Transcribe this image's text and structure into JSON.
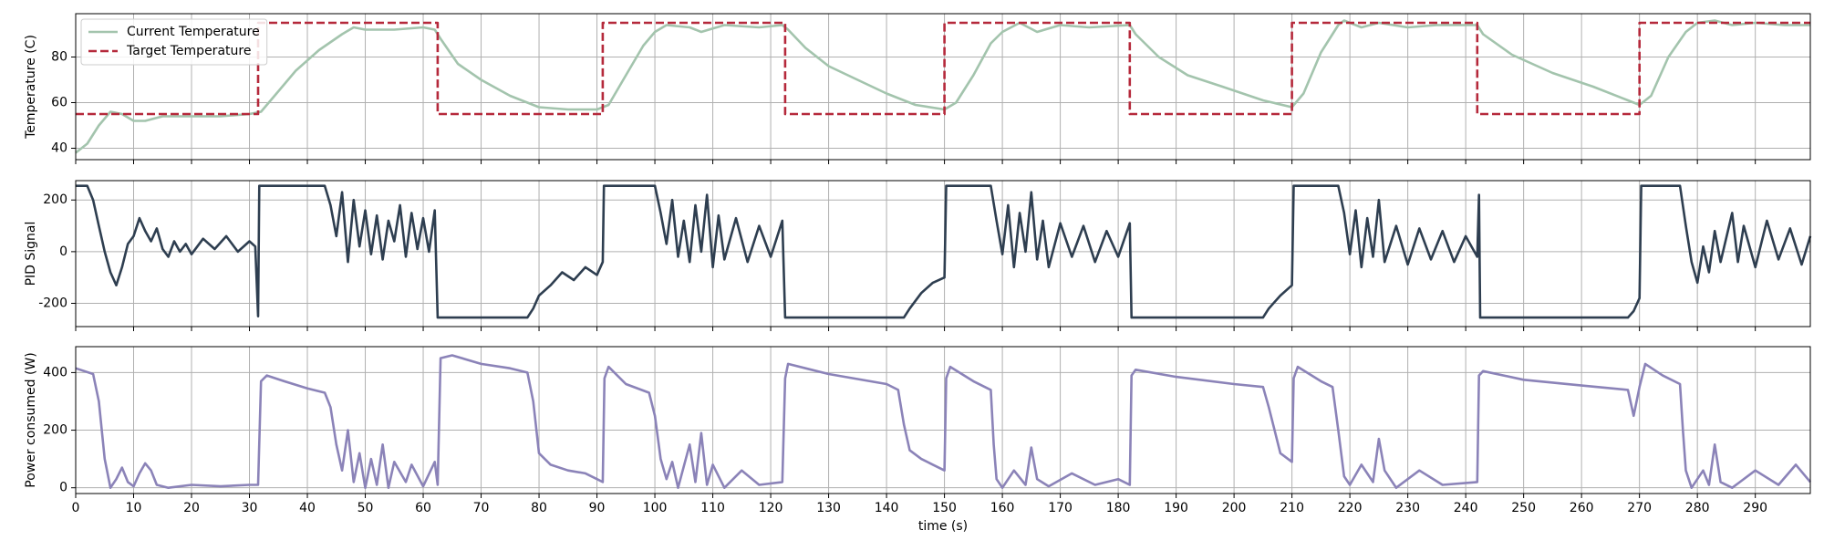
{
  "chart_data": [
    {
      "type": "line",
      "ylabel": "Temperature (C)",
      "xlim": [
        0,
        299.5
      ],
      "ylim": [
        35,
        99
      ],
      "yticks": [
        40,
        60,
        80
      ],
      "grid": true,
      "legend": "upper left",
      "series": [
        {
          "name": "Current Temperature",
          "color": "#a3c4ad",
          "linestyle": "solid",
          "x": [
            0,
            2,
            4,
            6,
            8,
            10,
            12,
            15,
            20,
            25,
            30,
            32,
            35,
            38,
            42,
            46,
            48,
            50,
            55,
            60,
            62,
            63,
            66,
            70,
            75,
            80,
            85,
            90,
            92,
            95,
            98,
            100,
            102,
            106,
            108,
            112,
            118,
            122,
            123,
            126,
            130,
            135,
            140,
            145,
            150,
            152,
            155,
            158,
            160,
            163,
            166,
            170,
            175,
            182,
            183,
            187,
            192,
            198,
            205,
            210,
            212,
            215,
            218,
            219,
            222,
            225,
            230,
            235,
            242,
            243,
            248,
            255,
            262,
            268,
            270,
            272,
            275,
            278,
            280,
            283,
            286,
            290,
            295,
            299.5
          ],
          "values": [
            38,
            42,
            50,
            56,
            55,
            52,
            52,
            54,
            54,
            54,
            55,
            56,
            65,
            74,
            83,
            90,
            93,
            92,
            92,
            93,
            92,
            88,
            77,
            70,
            63,
            58,
            57,
            57,
            59,
            72,
            85,
            91,
            94,
            93,
            91,
            94,
            93,
            94,
            92,
            84,
            76,
            70,
            64,
            59,
            57,
            60,
            72,
            86,
            91,
            95,
            91,
            94,
            93,
            94,
            90,
            80,
            72,
            67,
            61,
            58,
            64,
            82,
            94,
            96,
            93,
            95,
            93,
            94,
            94,
            90,
            81,
            73,
            67,
            61,
            59,
            63,
            80,
            91,
            95,
            96,
            94,
            95,
            94,
            94
          ]
        },
        {
          "name": "Target Temperature",
          "color": "#b5293b",
          "linestyle": "dashed",
          "x": [
            0,
            31.5,
            31.5,
            62.5,
            62.5,
            91,
            91,
            122.5,
            122.5,
            150,
            150,
            182,
            182,
            210,
            210,
            242,
            242,
            270,
            270,
            299.5
          ],
          "values": [
            55,
            55,
            95,
            95,
            55,
            55,
            95,
            95,
            55,
            55,
            95,
            95,
            55,
            55,
            95,
            95,
            55,
            55,
            95,
            95
          ]
        }
      ]
    },
    {
      "type": "line",
      "ylabel": "PID Signal",
      "xlim": [
        0,
        299.5
      ],
      "ylim": [
        -290,
        275
      ],
      "yticks": [
        -200,
        0,
        200
      ],
      "grid": true,
      "series": [
        {
          "color": "#2e3e50",
          "linestyle": "solid",
          "x": [
            0,
            2,
            3,
            4,
            5,
            6,
            7,
            8,
            9,
            10,
            11,
            12,
            13,
            14,
            15,
            16,
            17,
            18,
            19,
            20,
            22,
            24,
            26,
            28,
            30,
            31,
            31.5,
            31.7,
            43,
            44,
            45,
            46,
            47,
            48,
            49,
            50,
            51,
            52,
            53,
            54,
            55,
            56,
            57,
            58,
            59,
            60,
            61,
            62,
            62.5,
            78,
            79,
            80,
            82,
            84,
            86,
            88,
            90,
            91,
            91.2,
            100,
            101,
            102,
            103,
            104,
            105,
            106,
            107,
            108,
            109,
            110,
            111,
            112,
            114,
            116,
            118,
            120,
            122,
            122.5,
            143,
            144,
            146,
            148,
            150,
            150.3,
            158,
            159,
            160,
            161,
            162,
            163,
            164,
            165,
            166,
            167,
            168,
            170,
            172,
            174,
            176,
            178,
            180,
            182,
            182.3,
            205,
            206,
            208,
            210,
            210.3,
            218,
            219,
            220,
            221,
            222,
            223,
            224,
            225,
            226,
            228,
            230,
            232,
            234,
            236,
            238,
            240,
            242,
            242.3,
            242.5,
            268,
            269,
            270,
            270.3,
            277,
            278,
            279,
            280,
            281,
            282,
            283,
            284,
            286,
            287,
            288,
            290,
            292,
            294,
            296,
            298,
            299.5
          ],
          "values": [
            255,
            255,
            200,
            100,
            0,
            -80,
            -130,
            -60,
            30,
            60,
            130,
            80,
            40,
            90,
            10,
            -20,
            40,
            0,
            30,
            -10,
            50,
            10,
            60,
            0,
            40,
            20,
            -250,
            255,
            255,
            180,
            60,
            230,
            -40,
            200,
            20,
            160,
            -10,
            140,
            -30,
            120,
            40,
            180,
            -20,
            150,
            10,
            130,
            0,
            160,
            -255,
            -255,
            -220,
            -170,
            -130,
            -80,
            -110,
            -60,
            -90,
            -40,
            255,
            255,
            150,
            30,
            200,
            -20,
            120,
            -40,
            180,
            0,
            220,
            -60,
            140,
            -30,
            130,
            -40,
            100,
            -20,
            120,
            -255,
            -255,
            -220,
            -160,
            -120,
            -100,
            255,
            255,
            120,
            -10,
            180,
            -60,
            150,
            0,
            230,
            -30,
            120,
            -60,
            110,
            -20,
            100,
            -40,
            80,
            -20,
            110,
            -255,
            -255,
            -220,
            -170,
            -130,
            255,
            255,
            150,
            -10,
            160,
            -60,
            130,
            -20,
            200,
            -40,
            100,
            -50,
            90,
            -30,
            80,
            -40,
            60,
            -20,
            220,
            -255,
            -255,
            -230,
            -180,
            255,
            255,
            100,
            -40,
            -120,
            20,
            -80,
            80,
            -40,
            150,
            -40,
            100,
            -60,
            120,
            -30,
            90,
            -50,
            60
          ]
        }
      ]
    },
    {
      "type": "line",
      "ylabel": "Power consumed (W)",
      "xlabel": "time (s)",
      "xlim": [
        0,
        299.5
      ],
      "ylim": [
        -20,
        490
      ],
      "yticks": [
        0,
        200,
        400
      ],
      "xticks": [
        0,
        10,
        20,
        30,
        40,
        50,
        60,
        70,
        80,
        90,
        100,
        110,
        120,
        130,
        140,
        150,
        160,
        170,
        180,
        190,
        200,
        210,
        220,
        230,
        240,
        250,
        260,
        270,
        280,
        290
      ],
      "grid": true,
      "series": [
        {
          "color": "#8b83b8",
          "linestyle": "solid",
          "x": [
            0,
            3,
            4,
            5,
            6,
            7,
            8,
            9,
            10,
            11,
            12,
            13,
            14,
            16,
            20,
            25,
            30,
            31.5,
            32,
            33,
            36,
            40,
            43,
            44,
            45,
            46,
            47,
            48,
            49,
            50,
            51,
            52,
            53,
            54,
            55,
            57,
            58,
            60,
            62,
            62.5,
            63,
            65,
            70,
            75,
            78,
            79,
            80,
            82,
            85,
            88,
            90,
            91,
            91.3,
            92,
            95,
            99,
            100,
            101,
            102,
            103,
            104,
            106,
            107,
            108,
            109,
            110,
            112,
            115,
            118,
            122,
            122.5,
            123,
            130,
            140,
            142,
            143,
            144,
            146,
            148,
            150,
            150.3,
            151,
            155,
            158,
            158.5,
            159,
            160,
            162,
            164,
            165,
            166,
            168,
            172,
            176,
            180,
            182,
            182.3,
            183,
            190,
            200,
            205,
            206,
            208,
            210,
            210.3,
            211,
            215,
            217,
            218,
            219,
            220,
            222,
            224,
            225,
            226,
            228,
            232,
            236,
            242,
            242.3,
            243,
            250,
            260,
            268,
            269,
            270,
            271,
            274,
            277,
            277.5,
            278,
            279,
            281,
            282,
            283,
            284,
            286,
            290,
            294,
            297,
            299.5
          ],
          "values": [
            415,
            395,
            300,
            100,
            0,
            30,
            70,
            20,
            5,
            50,
            85,
            60,
            10,
            0,
            10,
            5,
            10,
            10,
            370,
            390,
            370,
            345,
            330,
            280,
            150,
            60,
            200,
            20,
            120,
            0,
            100,
            10,
            150,
            0,
            90,
            20,
            80,
            5,
            90,
            10,
            450,
            460,
            430,
            415,
            400,
            300,
            120,
            80,
            60,
            50,
            30,
            20,
            380,
            420,
            360,
            330,
            250,
            100,
            30,
            90,
            0,
            150,
            20,
            190,
            10,
            80,
            0,
            60,
            10,
            20,
            380,
            430,
            395,
            360,
            340,
            220,
            130,
            100,
            80,
            60,
            380,
            420,
            370,
            340,
            150,
            30,
            0,
            60,
            10,
            140,
            30,
            5,
            50,
            10,
            30,
            10,
            390,
            410,
            385,
            360,
            350,
            280,
            120,
            90,
            380,
            420,
            370,
            350,
            200,
            40,
            10,
            80,
            20,
            170,
            60,
            0,
            60,
            10,
            20,
            390,
            405,
            375,
            355,
            340,
            250,
            350,
            430,
            390,
            360,
            200,
            60,
            0,
            60,
            10,
            150,
            20,
            0,
            60,
            10,
            80,
            20
          ]
        }
      ]
    }
  ]
}
